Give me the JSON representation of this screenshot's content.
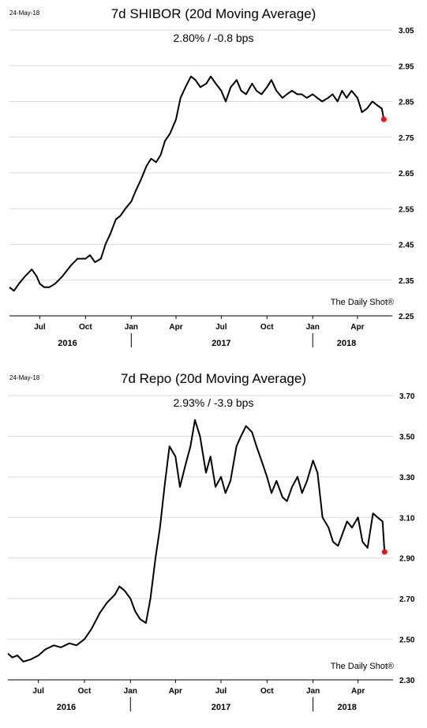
{
  "chart_data": [
    {
      "type": "line",
      "date_label": "24-May-18",
      "title": "7d SHIBOR (20d Moving Average)",
      "summary": "2.80%  /  -0.8 bps",
      "credit": "The Daily Shot®",
      "x_month_labels": [
        "Jul",
        "Oct",
        "Jan",
        "Apr",
        "Jul",
        "Oct",
        "Jan",
        "Apr"
      ],
      "x_year_labels": [
        "2016",
        "2017",
        "2018"
      ],
      "y_tick_labels": [
        "3.05",
        "2.95",
        "2.85",
        "2.75",
        "2.65",
        "2.55",
        "2.45",
        "2.35",
        "2.25"
      ],
      "ylim": [
        2.25,
        3.05
      ],
      "xlim": [
        "2016-05-01",
        "2018-06-10"
      ],
      "grid": true,
      "endpoint_color": "#e8141a",
      "line_color": "#000000",
      "series": [
        {
          "x": [
            "2016-05-01",
            "2016-05-10",
            "2016-05-20",
            "2016-06-01",
            "2016-06-15",
            "2016-06-25",
            "2016-07-01",
            "2016-07-10",
            "2016-07-20",
            "2016-08-01",
            "2016-08-15",
            "2016-09-01",
            "2016-09-15",
            "2016-10-01",
            "2016-10-10",
            "2016-10-20",
            "2016-11-01",
            "2016-11-10",
            "2016-11-20",
            "2016-12-01",
            "2016-12-10",
            "2016-12-20",
            "2017-01-01",
            "2017-01-10",
            "2017-01-20",
            "2017-02-01",
            "2017-02-10",
            "2017-02-20",
            "2017-03-01",
            "2017-03-10",
            "2017-03-20",
            "2017-04-01",
            "2017-04-10",
            "2017-04-20",
            "2017-05-01",
            "2017-05-10",
            "2017-05-20",
            "2017-06-01",
            "2017-06-10",
            "2017-06-20",
            "2017-07-01",
            "2017-07-10",
            "2017-07-20",
            "2017-08-01",
            "2017-08-10",
            "2017-08-20",
            "2017-09-01",
            "2017-09-10",
            "2017-09-20",
            "2017-10-01",
            "2017-10-10",
            "2017-10-20",
            "2017-11-01",
            "2017-11-10",
            "2017-11-20",
            "2017-12-01",
            "2017-12-10",
            "2017-12-20",
            "2018-01-01",
            "2018-01-10",
            "2018-01-20",
            "2018-02-01",
            "2018-02-10",
            "2018-02-20",
            "2018-03-01",
            "2018-03-10",
            "2018-03-20",
            "2018-04-01",
            "2018-04-10",
            "2018-04-20",
            "2018-05-01",
            "2018-05-10",
            "2018-05-20",
            "2018-05-24"
          ],
          "y": [
            2.33,
            2.32,
            2.34,
            2.36,
            2.38,
            2.36,
            2.34,
            2.33,
            2.33,
            2.34,
            2.36,
            2.39,
            2.41,
            2.41,
            2.42,
            2.4,
            2.41,
            2.45,
            2.48,
            2.52,
            2.53,
            2.55,
            2.57,
            2.6,
            2.63,
            2.67,
            2.69,
            2.68,
            2.7,
            2.74,
            2.76,
            2.8,
            2.86,
            2.89,
            2.92,
            2.91,
            2.89,
            2.9,
            2.92,
            2.9,
            2.88,
            2.85,
            2.89,
            2.91,
            2.88,
            2.87,
            2.9,
            2.88,
            2.87,
            2.89,
            2.91,
            2.88,
            2.86,
            2.87,
            2.88,
            2.87,
            2.87,
            2.86,
            2.87,
            2.86,
            2.85,
            2.86,
            2.87,
            2.85,
            2.88,
            2.86,
            2.88,
            2.86,
            2.82,
            2.83,
            2.85,
            2.84,
            2.83,
            2.8
          ]
        }
      ]
    },
    {
      "type": "line",
      "date_label": "24-May-18",
      "title": "7d Repo (20d Moving Average)",
      "summary": "2.93%  /  -3.9 bps",
      "credit": "The Daily Shot®",
      "x_month_labels": [
        "Jul",
        "Oct",
        "Jan",
        "Apr",
        "Jul",
        "Oct",
        "Jan",
        "Apr"
      ],
      "x_year_labels": [
        "2016",
        "2017",
        "2018"
      ],
      "y_tick_labels": [
        "3.70",
        "3.50",
        "3.30",
        "3.10",
        "2.90",
        "2.70",
        "2.50",
        "2.30"
      ],
      "ylim": [
        2.3,
        3.7
      ],
      "xlim": [
        "2016-05-01",
        "2018-06-10"
      ],
      "grid": true,
      "endpoint_color": "#e8141a",
      "line_color": "#000000",
      "series": [
        {
          "x": [
            "2016-05-01",
            "2016-05-10",
            "2016-05-20",
            "2016-06-01",
            "2016-06-15",
            "2016-07-01",
            "2016-07-15",
            "2016-08-01",
            "2016-08-15",
            "2016-09-01",
            "2016-09-15",
            "2016-10-01",
            "2016-10-15",
            "2016-11-01",
            "2016-11-15",
            "2016-12-01",
            "2016-12-10",
            "2016-12-20",
            "2017-01-01",
            "2017-01-10",
            "2017-01-20",
            "2017-02-01",
            "2017-02-10",
            "2017-02-20",
            "2017-03-01",
            "2017-03-10",
            "2017-03-20",
            "2017-04-01",
            "2017-04-10",
            "2017-04-20",
            "2017-05-01",
            "2017-05-10",
            "2017-05-20",
            "2017-06-01",
            "2017-06-10",
            "2017-06-20",
            "2017-07-01",
            "2017-07-10",
            "2017-07-20",
            "2017-08-01",
            "2017-08-10",
            "2017-08-20",
            "2017-09-01",
            "2017-09-10",
            "2017-09-20",
            "2017-10-01",
            "2017-10-10",
            "2017-10-20",
            "2017-11-01",
            "2017-11-10",
            "2017-11-20",
            "2017-12-01",
            "2017-12-10",
            "2017-12-20",
            "2018-01-01",
            "2018-01-10",
            "2018-01-20",
            "2018-02-01",
            "2018-02-10",
            "2018-02-20",
            "2018-03-01",
            "2018-03-10",
            "2018-03-20",
            "2018-04-01",
            "2018-04-10",
            "2018-04-20",
            "2018-05-01",
            "2018-05-10",
            "2018-05-20",
            "2018-05-24"
          ],
          "y": [
            2.43,
            2.41,
            2.42,
            2.39,
            2.4,
            2.42,
            2.45,
            2.47,
            2.46,
            2.48,
            2.47,
            2.5,
            2.55,
            2.63,
            2.68,
            2.72,
            2.76,
            2.74,
            2.7,
            2.64,
            2.6,
            2.58,
            2.7,
            2.9,
            3.05,
            3.25,
            3.45,
            3.4,
            3.25,
            3.35,
            3.45,
            3.58,
            3.5,
            3.32,
            3.4,
            3.25,
            3.3,
            3.22,
            3.28,
            3.45,
            3.5,
            3.55,
            3.52,
            3.45,
            3.38,
            3.3,
            3.22,
            3.28,
            3.2,
            3.18,
            3.25,
            3.3,
            3.22,
            3.28,
            3.38,
            3.32,
            3.1,
            3.05,
            2.98,
            2.96,
            3.02,
            3.08,
            3.05,
            3.1,
            2.98,
            2.95,
            3.12,
            3.1,
            3.08,
            2.93
          ]
        }
      ]
    }
  ]
}
